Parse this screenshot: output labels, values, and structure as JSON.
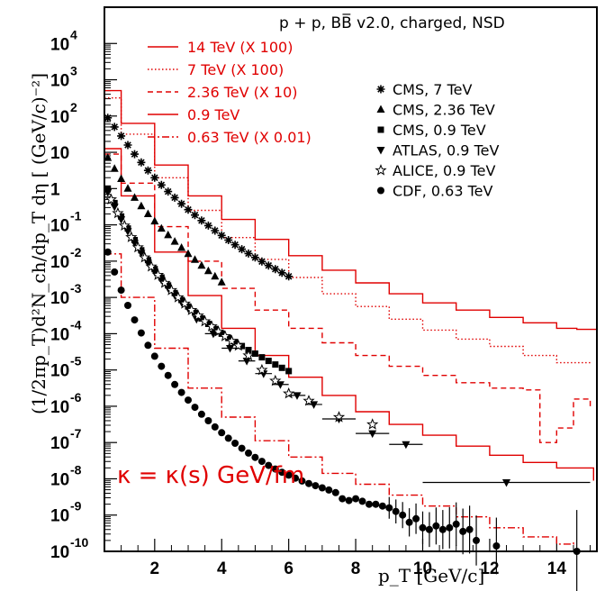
{
  "chart_data": {
    "type": "line",
    "title": "p + p, BB̅ v2.0, charged, NSD",
    "xlabel": "p_T [GeV/c]",
    "ylabel": "(1/2πp_T)d²N_ch/dp_T dη [ (GeV/c)⁻²]",
    "xlim": [
      0.5,
      15.2
    ],
    "ylim": [
      -10,
      5
    ],
    "yscale": "log",
    "x_ticks": [
      2,
      4,
      6,
      8,
      10,
      12,
      14
    ],
    "y_ticks": [
      {
        "base": "10",
        "exp": "4"
      },
      {
        "base": "10",
        "exp": "3"
      },
      {
        "base": "10",
        "exp": "2"
      },
      {
        "base": "10",
        "exp": ""
      },
      {
        "base": "1",
        "exp": ""
      },
      {
        "base": "10",
        "exp": "-1"
      },
      {
        "base": "10",
        "exp": "-2"
      },
      {
        "base": "10",
        "exp": "-3"
      },
      {
        "base": "10",
        "exp": "-4"
      },
      {
        "base": "10",
        "exp": "-5"
      },
      {
        "base": "10",
        "exp": "-6"
      },
      {
        "base": "10",
        "exp": "-7"
      },
      {
        "base": "10",
        "exp": "-8"
      },
      {
        "base": "10",
        "exp": "-9"
      },
      {
        "base": "10",
        "exp": "-10"
      }
    ],
    "annotation": "κ = κ(s) GeV/fm",
    "colors": {
      "model": "#e00000",
      "data": "#000000"
    },
    "model_series": [
      {
        "name": "14 TeV (X 100)",
        "style": "solid",
        "x": [
          0.5,
          1,
          2,
          3,
          4,
          5,
          6,
          7,
          8,
          9,
          10,
          11,
          12,
          13,
          14,
          14.6,
          15.2
        ],
        "y": [
          2.7,
          1.8,
          0.65,
          -0.2,
          -0.85,
          -1.4,
          -1.85,
          -2.25,
          -2.6,
          -2.9,
          -3.15,
          -3.35,
          -3.55,
          -3.7,
          -3.85,
          -3.88,
          -3.82
        ]
      },
      {
        "name": "7 TeV (X 100)",
        "style": "dotted",
        "x": [
          0.5,
          1,
          2,
          3,
          4,
          5,
          6,
          7,
          8,
          9,
          10,
          11,
          12,
          13,
          14,
          15
        ],
        "y": [
          2.5,
          1.5,
          0.3,
          -0.6,
          -1.35,
          -1.95,
          -2.45,
          -2.9,
          -3.25,
          -3.6,
          -3.9,
          -4.15,
          -4.35,
          -4.6,
          -4.8,
          -4.85
        ]
      },
      {
        "name": "2.36 TeV (X 10)",
        "style": "dashed",
        "x": [
          0.5,
          1,
          2,
          3,
          4,
          5,
          6,
          7,
          8,
          9,
          10,
          11,
          12,
          13,
          13.5,
          14,
          14.5,
          15
        ],
        "y": [
          0.95,
          0.15,
          -1.05,
          -2.0,
          -2.75,
          -3.35,
          -3.85,
          -4.25,
          -4.6,
          -4.9,
          -5.15,
          -5.35,
          -5.5,
          -5.55,
          -7.0,
          -6.6,
          -5.8,
          -6.0
        ]
      },
      {
        "name": "0.9 TeV",
        "style": "solid",
        "x": [
          0.5,
          1,
          2,
          3,
          4,
          5,
          6,
          7,
          8,
          9,
          10,
          11,
          12,
          13,
          14,
          14.6,
          15.1
        ],
        "y": [
          1.1,
          -0.2,
          -1.75,
          -2.95,
          -3.85,
          -4.6,
          -5.2,
          -5.7,
          -6.15,
          -6.5,
          -6.8,
          -7.1,
          -7.35,
          -7.55,
          -7.7,
          -7.7,
          -8.05
        ]
      },
      {
        "name": "0.63 TeV (X 0.01)",
        "style": "dashdot",
        "x": [
          0.5,
          1,
          2,
          3,
          4,
          5,
          6,
          7,
          8,
          9,
          10,
          11,
          12,
          13,
          14,
          14.5
        ],
        "y": [
          -1.8,
          -3.0,
          -4.4,
          -5.5,
          -6.3,
          -6.95,
          -7.4,
          -7.85,
          -8.15,
          -8.45,
          -8.75,
          -9.05,
          -9.35,
          -9.6,
          -9.8,
          -9.75
        ]
      }
    ],
    "data_series": [
      {
        "name": "CMS, 7 TeV",
        "marker": "asterisk",
        "x": [
          0.6,
          0.8,
          1.0,
          1.2,
          1.4,
          1.6,
          1.8,
          2.0,
          2.2,
          2.4,
          2.6,
          2.8,
          3.0,
          3.2,
          3.4,
          3.6,
          3.8,
          4.0,
          4.2,
          4.4,
          4.6,
          4.8,
          5.0,
          5.2,
          5.4,
          5.6,
          5.8,
          6.0
        ],
        "y": [
          1.95,
          1.7,
          1.45,
          1.2,
          0.95,
          0.72,
          0.5,
          0.3,
          0.1,
          -0.08,
          -0.25,
          -0.42,
          -0.58,
          -0.73,
          -0.88,
          -1.02,
          -1.16,
          -1.29,
          -1.42,
          -1.55,
          -1.67,
          -1.79,
          -1.9,
          -2.01,
          -2.12,
          -2.22,
          -2.32,
          -2.42
        ]
      },
      {
        "name": "CMS, 2.36 TeV",
        "marker": "triangle-up",
        "x": [
          0.6,
          0.8,
          1.0,
          1.2,
          1.4,
          1.6,
          1.8,
          2.0,
          2.2,
          2.4,
          2.6,
          2.8,
          3.0,
          3.2,
          3.4,
          3.6,
          3.8,
          4.0
        ],
        "y": [
          0.85,
          0.55,
          0.27,
          0.0,
          -0.25,
          -0.48,
          -0.7,
          -0.9,
          -1.1,
          -1.28,
          -1.46,
          -1.63,
          -1.8,
          -1.96,
          -2.12,
          -2.27,
          -2.42,
          -2.58
        ]
      },
      {
        "name": "CMS, 0.9 TeV",
        "marker": "square",
        "x": [
          0.6,
          0.8,
          1.0,
          1.2,
          1.4,
          1.6,
          1.8,
          2.0,
          2.2,
          2.4,
          2.6,
          2.8,
          3.0,
          3.2,
          3.4,
          3.6,
          3.8,
          4.0,
          4.2,
          4.4,
          4.6,
          4.8,
          5.0,
          5.2,
          5.4,
          5.6,
          5.8,
          6.0
        ],
        "y": [
          0.0,
          -0.4,
          -0.77,
          -1.1,
          -1.42,
          -1.7,
          -1.97,
          -2.22,
          -2.45,
          -2.67,
          -2.88,
          -3.07,
          -3.25,
          -3.42,
          -3.58,
          -3.73,
          -3.87,
          -4.0,
          -4.12,
          -4.23,
          -4.34,
          -4.45,
          -4.55,
          -4.65,
          -4.75,
          -4.85,
          -4.94,
          -5.03
        ]
      },
      {
        "name": "ATLAS, 0.9 TeV",
        "marker": "triangle-down",
        "x": [
          0.6,
          0.8,
          1.0,
          1.2,
          1.4,
          1.6,
          1.8,
          2.0,
          2.2,
          2.4,
          2.6,
          2.8,
          3.0,
          3.25,
          3.75,
          4.25,
          4.75,
          5.25,
          5.75,
          6.25,
          6.75,
          7.5,
          8.5,
          9.5,
          12.5
        ],
        "y": [
          -0.1,
          -0.5,
          -0.85,
          -1.18,
          -1.5,
          -1.78,
          -2.05,
          -2.3,
          -2.52,
          -2.74,
          -2.94,
          -3.13,
          -3.3,
          -3.6,
          -4.0,
          -4.4,
          -4.75,
          -5.1,
          -5.4,
          -5.7,
          -5.95,
          -6.35,
          -6.75,
          -7.05,
          -8.1
        ]
      },
      {
        "name": "ALICE, 0.9 TeV",
        "marker": "star",
        "x": [
          0.7,
          0.9,
          1.1,
          1.3,
          1.5,
          1.7,
          1.9,
          2.1,
          2.3,
          2.5,
          2.7,
          2.9,
          3.1,
          3.3,
          3.5,
          3.7,
          3.9,
          4.1,
          4.3,
          4.5,
          4.8,
          5.2,
          5.6,
          6.0,
          6.6,
          7.5,
          8.5
        ],
        "y": [
          -0.3,
          -0.68,
          -1.02,
          -1.34,
          -1.62,
          -1.9,
          -2.15,
          -2.38,
          -2.6,
          -2.8,
          -3.0,
          -3.17,
          -3.35,
          -3.5,
          -3.66,
          -3.8,
          -3.94,
          -4.07,
          -4.2,
          -4.33,
          -4.6,
          -5.0,
          -5.3,
          -5.65,
          -5.85,
          -6.3,
          -6.5
        ]
      },
      {
        "name": "CDF, 0.63 TeV",
        "marker": "circle",
        "x": [
          0.6,
          0.8,
          1.0,
          1.2,
          1.4,
          1.6,
          1.8,
          2.0,
          2.2,
          2.4,
          2.6,
          2.8,
          3.0,
          3.2,
          3.4,
          3.6,
          3.8,
          4.0,
          4.2,
          4.4,
          4.6,
          4.8,
          5.0,
          5.2,
          5.4,
          5.6,
          5.8,
          6.0,
          6.2,
          6.4,
          6.6,
          6.8,
          7.0,
          7.2,
          7.4,
          7.6,
          7.8,
          8.0,
          8.2,
          8.4,
          8.6,
          8.8,
          9.0,
          9.2,
          9.4,
          9.6,
          9.8,
          10.0,
          10.2,
          10.4,
          10.6,
          10.8,
          11.0,
          11.2,
          11.4,
          11.6,
          12.2,
          14.6
        ],
        "y": [
          -1.75,
          -2.3,
          -2.8,
          -3.22,
          -3.62,
          -3.98,
          -4.32,
          -4.62,
          -4.9,
          -5.15,
          -5.4,
          -5.62,
          -5.83,
          -6.03,
          -6.22,
          -6.4,
          -6.57,
          -6.73,
          -6.88,
          -7.02,
          -7.16,
          -7.29,
          -7.41,
          -7.52,
          -7.63,
          -7.73,
          -7.82,
          -7.9,
          -7.98,
          -8.06,
          -8.13,
          -8.19,
          -8.25,
          -8.31,
          -8.38,
          -8.55,
          -8.6,
          -8.55,
          -8.62,
          -8.7,
          -8.7,
          -8.75,
          -8.8,
          -8.9,
          -9.0,
          -9.2,
          -9.1,
          -9.35,
          -9.4,
          -9.3,
          -9.4,
          -9.35,
          -9.25,
          -9.45,
          -9.4,
          -9.7,
          -9.85,
          -10.0
        ]
      }
    ]
  }
}
